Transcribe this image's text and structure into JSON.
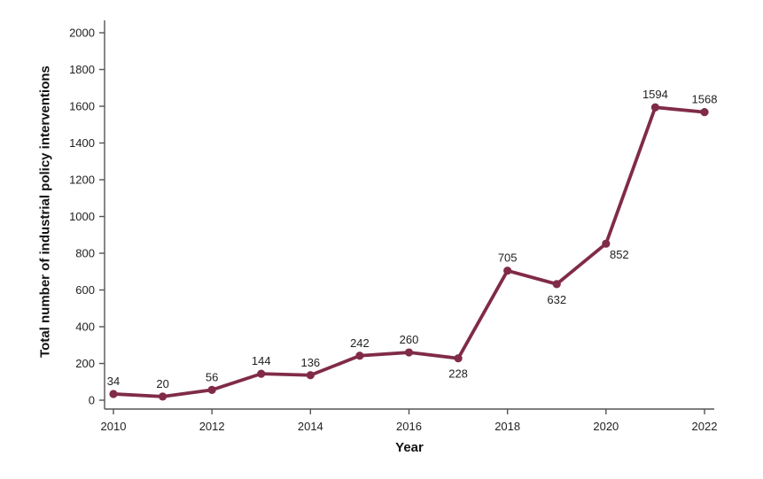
{
  "figure": {
    "background": "#ffffff"
  },
  "chart_data": {
    "type": "line",
    "title": "",
    "xlabel": "Year",
    "ylabel": "Total number of industrial policy interventions",
    "x": [
      2010,
      2011,
      2012,
      2013,
      2014,
      2015,
      2016,
      2017,
      2018,
      2019,
      2020,
      2021,
      2022
    ],
    "values": [
      34,
      20,
      56,
      144,
      136,
      242,
      260,
      228,
      705,
      632,
      852,
      1594,
      1568
    ],
    "point_labels": [
      "34",
      "20",
      "56",
      "144",
      "136",
      "242",
      "260",
      "228",
      "705",
      "632",
      "852",
      "1594",
      "1568"
    ],
    "label_positions": [
      "above",
      "above",
      "above",
      "above",
      "above",
      "above",
      "above",
      "below",
      "above",
      "below",
      "below-right",
      "above",
      "above"
    ],
    "xticks": [
      2010,
      2012,
      2014,
      2016,
      2018,
      2020,
      2022
    ],
    "yticks": [
      0,
      200,
      400,
      600,
      800,
      1000,
      1200,
      1400,
      1600,
      1800,
      2000
    ],
    "xlim": [
      2010,
      2022
    ],
    "ylim": [
      0,
      2000
    ],
    "grid": false,
    "legend_position": "none",
    "line_color": "#802B47",
    "marker_color": "#802B47",
    "axis_color": "#545454",
    "text_color": "#1f1f1f"
  }
}
